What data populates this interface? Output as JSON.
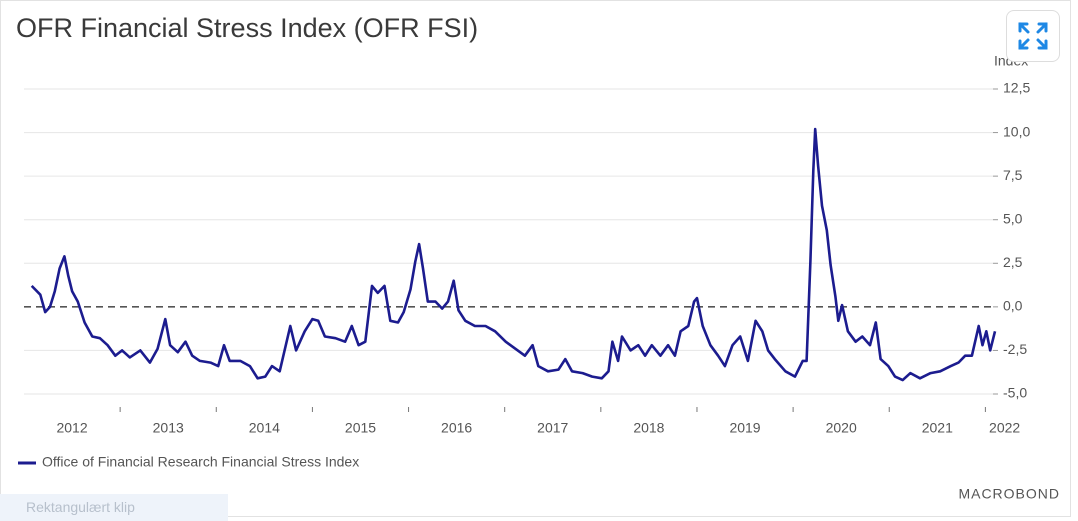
{
  "chart_data": {
    "type": "line",
    "title": "OFR Financial Stress Index (OFR FSI)",
    "y_axis_label": "Index",
    "series": [
      {
        "name": "Office of Financial Research Financial Stress Index",
        "color": "#1c1c8f",
        "x": [
          2012.08,
          2012.17,
          2012.22,
          2012.27,
          2012.32,
          2012.37,
          2012.42,
          2012.46,
          2012.5,
          2012.56,
          2012.63,
          2012.71,
          2012.79,
          2012.87,
          2012.95,
          2013.02,
          2013.1,
          2013.21,
          2013.31,
          2013.39,
          2013.47,
          2013.52,
          2013.6,
          2013.68,
          2013.75,
          2013.83,
          2013.94,
          2014.02,
          2014.08,
          2014.14,
          2014.25,
          2014.35,
          2014.43,
          2014.51,
          2014.58,
          2014.66,
          2014.77,
          2014.83,
          2014.92,
          2015.0,
          2015.06,
          2015.13,
          2015.24,
          2015.34,
          2015.41,
          2015.48,
          2015.55,
          2015.62,
          2015.68,
          2015.75,
          2015.81,
          2015.89,
          2015.95,
          2016.02,
          2016.07,
          2016.11,
          2016.15,
          2016.2,
          2016.28,
          2016.35,
          2016.41,
          2016.47,
          2016.52,
          2016.59,
          2016.69,
          2016.8,
          2016.9,
          2017.01,
          2017.11,
          2017.21,
          2017.29,
          2017.35,
          2017.45,
          2017.56,
          2017.63,
          2017.7,
          2017.81,
          2017.91,
          2018.01,
          2018.08,
          2018.12,
          2018.18,
          2018.22,
          2018.31,
          2018.39,
          2018.46,
          2018.53,
          2018.62,
          2018.7,
          2018.77,
          2018.83,
          2018.91,
          2018.97,
          2019.0,
          2019.06,
          2019.14,
          2019.22,
          2019.29,
          2019.37,
          2019.45,
          2019.53,
          2019.61,
          2019.68,
          2019.74,
          2019.81,
          2019.92,
          2020.02,
          2020.1,
          2020.14,
          2020.18,
          2020.21,
          2020.23,
          2020.26,
          2020.3,
          2020.35,
          2020.39,
          2020.44,
          2020.47,
          2020.51,
          2020.57,
          2020.65,
          2020.72,
          2020.8,
          2020.86,
          2020.91,
          2020.99,
          2021.06,
          2021.14,
          2021.22,
          2021.32,
          2021.43,
          2021.53,
          2021.64,
          2021.72,
          2021.79,
          2021.86,
          2021.93,
          2021.97,
          2022.01,
          2022.05,
          2022.1
        ],
        "values": [
          1.2,
          0.7,
          -0.3,
          0.0,
          0.9,
          2.2,
          2.9,
          1.8,
          0.9,
          0.3,
          -0.9,
          -1.7,
          -1.8,
          -2.2,
          -2.8,
          -2.5,
          -2.9,
          -2.5,
          -3.2,
          -2.4,
          -0.7,
          -2.2,
          -2.6,
          -2.0,
          -2.8,
          -3.1,
          -3.2,
          -3.4,
          -2.2,
          -3.1,
          -3.1,
          -3.4,
          -4.1,
          -4.0,
          -3.4,
          -3.7,
          -1.1,
          -2.5,
          -1.4,
          -0.7,
          -0.8,
          -1.7,
          -1.8,
          -2.0,
          -1.1,
          -2.2,
          -2.0,
          1.2,
          0.8,
          1.2,
          -0.8,
          -0.9,
          -0.3,
          1.0,
          2.6,
          3.6,
          2.2,
          0.3,
          0.3,
          -0.1,
          0.3,
          1.5,
          -0.2,
          -0.8,
          -1.1,
          -1.1,
          -1.4,
          -2.0,
          -2.4,
          -2.8,
          -2.2,
          -3.4,
          -3.7,
          -3.6,
          -3.0,
          -3.7,
          -3.8,
          -4.0,
          -4.1,
          -3.7,
          -2.0,
          -3.1,
          -1.7,
          -2.5,
          -2.2,
          -2.8,
          -2.2,
          -2.8,
          -2.2,
          -2.8,
          -1.4,
          -1.1,
          0.3,
          0.5,
          -1.1,
          -2.2,
          -2.8,
          -3.4,
          -2.2,
          -1.7,
          -3.1,
          -0.8,
          -1.4,
          -2.5,
          -3.0,
          -3.7,
          -4.0,
          -3.1,
          -3.1,
          2.6,
          7.8,
          10.2,
          8.1,
          5.8,
          4.4,
          2.4,
          0.6,
          -0.8,
          0.1,
          -1.4,
          -2.0,
          -1.7,
          -2.2,
          -0.9,
          -3.0,
          -3.4,
          -4.0,
          -4.2,
          -3.8,
          -4.1,
          -3.8,
          -3.7,
          -3.4,
          -3.2,
          -2.8,
          -2.8,
          -1.1,
          -2.2,
          -1.4,
          -2.5,
          -1.4
        ]
      }
    ],
    "xlim": [
      2012.0,
      2022.1
    ],
    "xticks": [
      {
        "value": 2012.5,
        "label": "2012"
      },
      {
        "value": 2013.5,
        "label": "2013"
      },
      {
        "value": 2014.5,
        "label": "2014"
      },
      {
        "value": 2015.5,
        "label": "2015"
      },
      {
        "value": 2016.5,
        "label": "2016"
      },
      {
        "value": 2017.5,
        "label": "2017"
      },
      {
        "value": 2018.5,
        "label": "2018"
      },
      {
        "value": 2019.5,
        "label": "2019"
      },
      {
        "value": 2020.5,
        "label": "2020"
      },
      {
        "value": 2021.5,
        "label": "2021"
      },
      {
        "value": 2022.2,
        "label": "2022"
      }
    ],
    "ylim": [
      -5,
      12.5
    ],
    "yticks": [
      {
        "value": -5,
        "label": "-5,0"
      },
      {
        "value": -2.5,
        "label": "-2,5"
      },
      {
        "value": 0,
        "label": "0,0"
      },
      {
        "value": 2.5,
        "label": "2,5"
      },
      {
        "value": 5,
        "label": "5,0"
      },
      {
        "value": 7.5,
        "label": "7,5"
      },
      {
        "value": 10,
        "label": "10,0"
      },
      {
        "value": 12.5,
        "label": "12,5"
      }
    ],
    "grid": true,
    "legend": "bottom-left"
  },
  "branding": "MACROBOND",
  "screen_overlay": "Rektangulært klip"
}
